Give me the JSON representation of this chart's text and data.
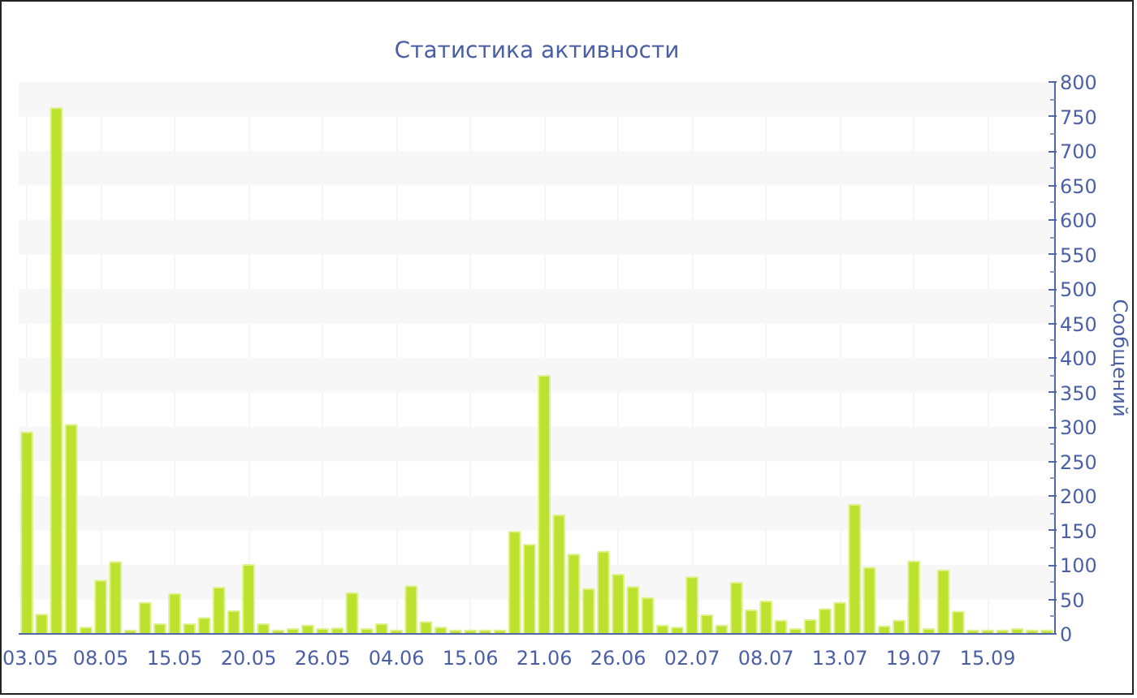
{
  "chart_data": {
    "type": "bar",
    "title": "Статистика активности",
    "ylabel": "Сообщений",
    "categories": [
      "03.05",
      null,
      null,
      null,
      null,
      "08.05",
      null,
      null,
      null,
      null,
      "15.05",
      null,
      null,
      null,
      null,
      "20.05",
      null,
      null,
      null,
      null,
      "26.05",
      null,
      null,
      null,
      null,
      "04.06",
      null,
      null,
      null,
      null,
      "15.06",
      null,
      null,
      null,
      null,
      "21.06",
      null,
      null,
      null,
      null,
      "26.06",
      null,
      null,
      null,
      null,
      "02.07",
      null,
      null,
      null,
      null,
      "08.07",
      null,
      null,
      null,
      null,
      "13.07",
      null,
      null,
      null,
      null,
      "19.07",
      null,
      null,
      null,
      null,
      "15.09",
      null,
      null,
      null,
      null
    ],
    "values": [
      292,
      28,
      762,
      303,
      9,
      77,
      104,
      5,
      45,
      14,
      58,
      14,
      23,
      67,
      33,
      100,
      14,
      5,
      7,
      12,
      7,
      8,
      59,
      7,
      14,
      5,
      69,
      17,
      9,
      5,
      5,
      5,
      5,
      148,
      129,
      374,
      172,
      115,
      65,
      119,
      86,
      68,
      52,
      12,
      9,
      82,
      27,
      12,
      74,
      34,
      47,
      19,
      7,
      20,
      36,
      45,
      187,
      96,
      11,
      19,
      105,
      7,
      92,
      32,
      5,
      5,
      5,
      7,
      5,
      5
    ],
    "color": "#bce22f",
    "ylim": [
      0,
      800
    ],
    "yticks": [
      0,
      50,
      100,
      150,
      200,
      250,
      300,
      350,
      400,
      450,
      500,
      550,
      600,
      650,
      700,
      750,
      800
    ],
    "grid": true
  }
}
